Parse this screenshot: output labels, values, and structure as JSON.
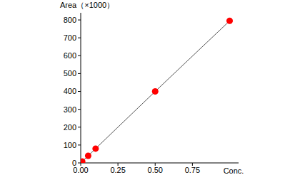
{
  "chart_data": {
    "type": "scatter",
    "y_label": "Area（×1000）",
    "x_label": "Conc.",
    "x": [
      0.01,
      0.05,
      0.1,
      0.5,
      1.0
    ],
    "values": [
      8,
      40,
      80,
      400,
      795
    ],
    "color": "#ff0000",
    "marker": "circle",
    "line_style": "solid",
    "xlim": [
      0,
      1.06
    ],
    "xticks": [
      {
        "value": 0,
        "label": "0.00"
      },
      {
        "value": 0.25,
        "label": "0.25"
      },
      {
        "value": 0.5,
        "label": "0.50"
      },
      {
        "value": 0.75,
        "label": "0.75"
      }
    ],
    "ylim": [
      0,
      840
    ],
    "yticks": [
      0,
      100,
      200,
      300,
      400,
      500,
      600,
      700,
      800
    ],
    "grid": false
  }
}
